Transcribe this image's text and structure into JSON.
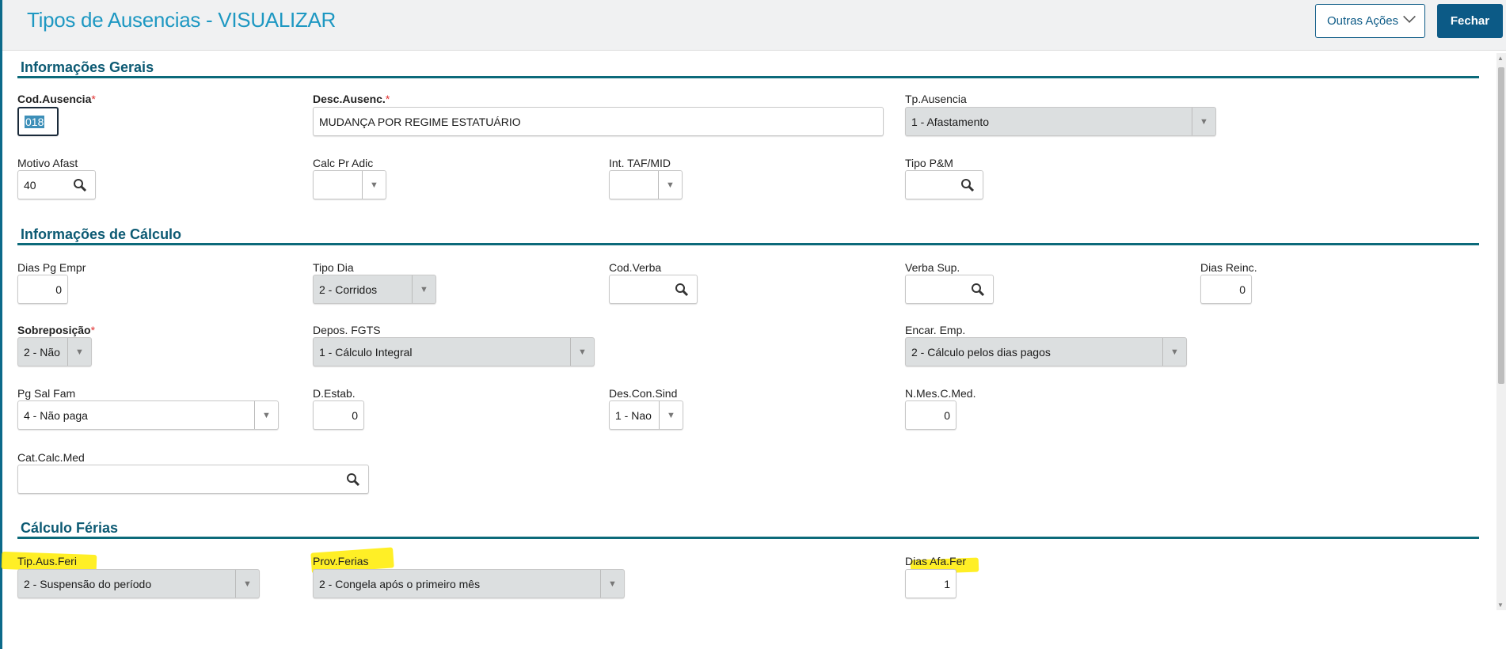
{
  "header": {
    "title": "Tipos de Ausencias - VISUALIZAR",
    "other_actions": "Outras Ações",
    "close": "Fechar"
  },
  "sections": {
    "general": "Informações Gerais",
    "calc": "Informações de Cálculo",
    "vacation": "Cálculo Férias"
  },
  "fields": {
    "cod_ausencia": {
      "label": "Cod.Ausencia",
      "value": "018",
      "required": true
    },
    "desc_ausenc": {
      "label": "Desc.Ausenc.",
      "value": "MUDANÇA POR REGIME ESTATUÁRIO",
      "required": true
    },
    "tp_ausencia": {
      "label": "Tp.Ausencia",
      "value": "1 - Afastamento"
    },
    "motivo_afast": {
      "label": "Motivo Afast",
      "value": "40"
    },
    "calc_pr_adic": {
      "label": "Calc Pr Adic",
      "value": ""
    },
    "int_taf_mid": {
      "label": "Int. TAF/MID",
      "value": ""
    },
    "tipo_pm": {
      "label": "Tipo P&M",
      "value": ""
    },
    "dias_pg_empr": {
      "label": "Dias Pg Empr",
      "value": "0"
    },
    "tipo_dia": {
      "label": "Tipo Dia",
      "value": "2 - Corridos"
    },
    "cod_verba": {
      "label": "Cod.Verba",
      "value": ""
    },
    "verba_sup": {
      "label": "Verba Sup.",
      "value": ""
    },
    "dias_reinc": {
      "label": "Dias Reinc.",
      "value": "0"
    },
    "sobreposicao": {
      "label": "Sobreposição",
      "value": "2 - Não",
      "required": true
    },
    "depos_fgts": {
      "label": "Depos. FGTS",
      "value": "1 - Cálculo Integral"
    },
    "encar_emp": {
      "label": "Encar. Emp.",
      "value": "2 - Cálculo pelos dias pagos"
    },
    "pg_sal_fam": {
      "label": "Pg Sal Fam",
      "value": "4 - Não paga"
    },
    "d_estab": {
      "label": "D.Estab.",
      "value": "0"
    },
    "des_con_sind": {
      "label": "Des.Con.Sind",
      "value": "1 - Nao"
    },
    "n_mes_c_med": {
      "label": "N.Mes.C.Med.",
      "value": "0"
    },
    "cat_calc_med": {
      "label": "Cat.Calc.Med",
      "value": ""
    },
    "tip_aus_feri": {
      "label": "Tip.Aus.Feri",
      "value": "2 - Suspensão do período"
    },
    "prov_ferias": {
      "label": "Prov.Ferias",
      "value": "2 - Congela após o primeiro mês"
    },
    "dias_afa_fer": {
      "label": "Dias Afa.Fer",
      "value": "1"
    }
  },
  "required_marker": "*",
  "colors": {
    "accent": "#1e98c2",
    "primary": "#0c5a86",
    "section_line": "#0c6a7a",
    "highlight": "#ffec00"
  }
}
